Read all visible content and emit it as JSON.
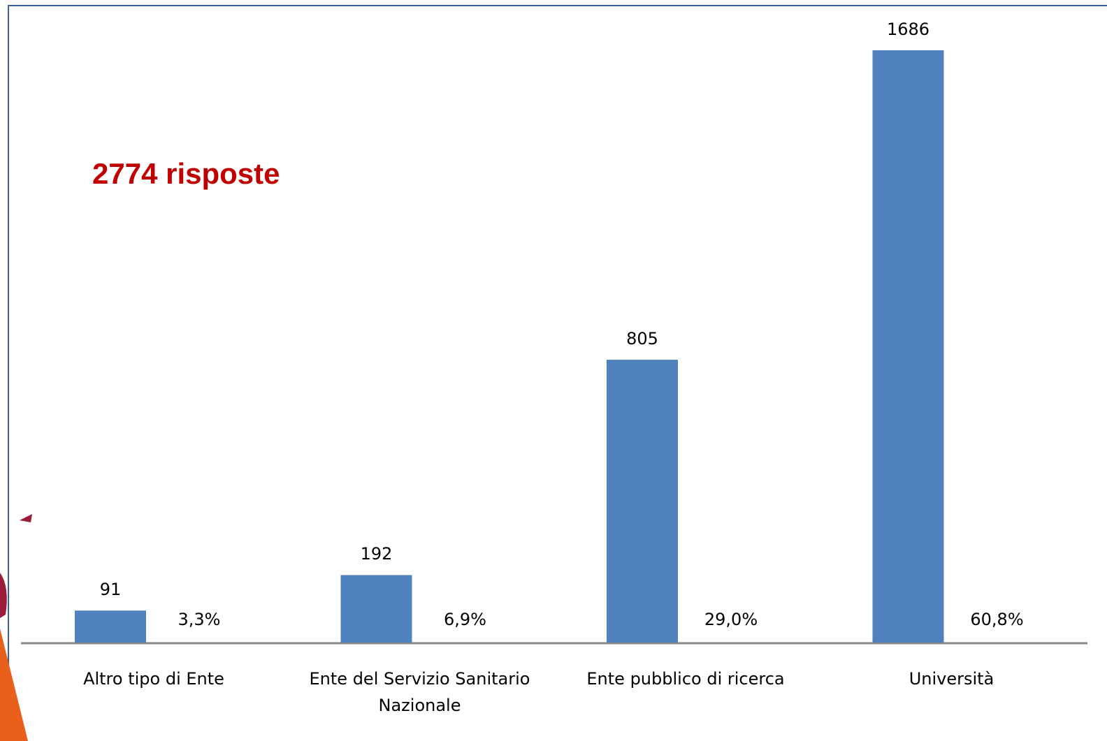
{
  "chart_data": {
    "type": "bar",
    "annotation": "2774 risposte",
    "categories": [
      "Altro tipo di Ente",
      "Ente del Servizio Sanitario Nazionale",
      "Ente pubblico di ricerca",
      "Università"
    ],
    "values": [
      91,
      192,
      805,
      1686
    ],
    "percent_labels": [
      "3,3%",
      "6,9%",
      "29,0%",
      "60,8%"
    ],
    "color": "#4f81bd"
  }
}
